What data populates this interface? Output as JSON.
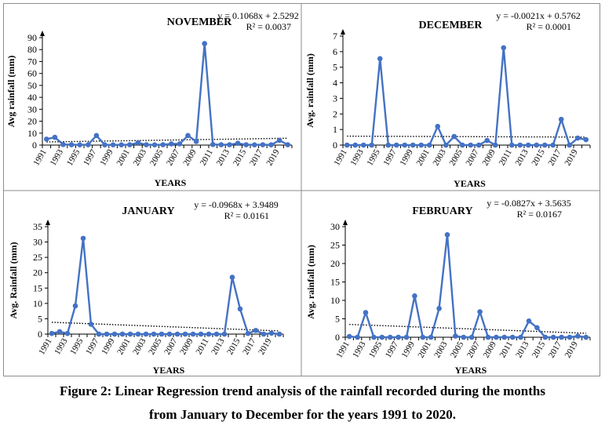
{
  "caption": {
    "line1": "Figure 2: Linear Regression trend analysis of the rainfall recorded during the months",
    "line2": "from January to December for the years 1991 to 2020."
  },
  "colors": {
    "series": "#4472C4",
    "trend": "#000000",
    "border": "#8c8c8c"
  },
  "chart_data": [
    {
      "type": "line",
      "title": "NOVEMBER",
      "equation": "y = 0.1068x + 2.5292",
      "r2": "R² = 0.0037",
      "xlabel": "YEARS",
      "ylabel": "Avg rainfall (mm)",
      "ylim": [
        0,
        90
      ],
      "yticks": [
        0,
        10,
        20,
        30,
        40,
        50,
        60,
        70,
        80,
        90
      ],
      "x": [
        1991,
        1992,
        1993,
        1994,
        1995,
        1996,
        1997,
        1998,
        1999,
        2000,
        2001,
        2002,
        2003,
        2004,
        2005,
        2006,
        2007,
        2008,
        2009,
        2010,
        2011,
        2012,
        2013,
        2014,
        2015,
        2016,
        2017,
        2018,
        2019,
        2020
      ],
      "xticks": [
        "1991",
        "1993",
        "1995",
        "1997",
        "1999",
        "2001",
        "2003",
        "2005",
        "2007",
        "2009",
        "2011",
        "2013",
        "2015",
        "2017",
        "2019"
      ],
      "values": [
        5.0,
        6.5,
        0.5,
        0.3,
        0.2,
        0.3,
        8.0,
        0.2,
        0.2,
        0.2,
        0.3,
        2.0,
        0.3,
        0.2,
        0.3,
        1.0,
        1.0,
        8.0,
        3.0,
        85.0,
        0.5,
        0.3,
        0.3,
        1.5,
        0.3,
        0.2,
        0.3,
        0.2,
        4.0,
        0.3
      ],
      "trend": {
        "slope": 0.1068,
        "intercept": 2.5292
      },
      "grid": false
    },
    {
      "type": "line",
      "title": "DECEMBER",
      "equation": "y = -0.0021x + 0.5762",
      "r2": "R² = 0.0001",
      "xlabel": "YEARS",
      "ylabel": "Avg. rainfall (mm)",
      "ylim": [
        0,
        7
      ],
      "yticks": [
        0,
        1,
        2,
        3,
        4,
        5,
        6,
        7
      ],
      "x": [
        1991,
        1992,
        1993,
        1994,
        1995,
        1996,
        1997,
        1998,
        1999,
        2000,
        2001,
        2002,
        2003,
        2004,
        2005,
        2006,
        2007,
        2008,
        2009,
        2010,
        2011,
        2012,
        2013,
        2014,
        2015,
        2016,
        2017,
        2018,
        2019,
        2020
      ],
      "xticks": [
        "1991",
        "1993",
        "1995",
        "1997",
        "1999",
        "2001",
        "2003",
        "2005",
        "2007",
        "2009",
        "2011",
        "2013",
        "2015",
        "2017",
        "2019"
      ],
      "values": [
        0,
        0,
        0,
        0,
        5.55,
        0,
        0,
        0,
        0,
        0,
        0,
        1.2,
        0,
        0.55,
        0,
        0,
        0,
        0.3,
        0,
        6.25,
        0,
        0,
        0,
        0,
        0,
        0,
        1.65,
        0,
        0.45,
        0.35
      ],
      "trend": {
        "slope": -0.0021,
        "intercept": 0.5762
      },
      "grid": false
    },
    {
      "type": "line",
      "title": "JANUARY",
      "equation": "y = -0.0968x + 3.9489",
      "r2": "R² = 0.0161",
      "xlabel": "YEARS",
      "ylabel": "Avg. Rainfall (mm)",
      "ylim": [
        0,
        35
      ],
      "yticks": [
        0,
        5,
        10,
        15,
        20,
        25,
        30,
        35
      ],
      "x": [
        1991,
        1992,
        1993,
        1994,
        1995,
        1996,
        1997,
        1998,
        1999,
        2000,
        2001,
        2002,
        2003,
        2004,
        2005,
        2006,
        2007,
        2008,
        2009,
        2010,
        2011,
        2012,
        2013,
        2014,
        2015,
        2016,
        2017,
        2018,
        2019,
        2020
      ],
      "xticks": [
        "1991",
        "1993",
        "1995",
        "1997",
        "1999",
        "2001",
        "2003",
        "2005",
        "2007",
        "2009",
        "2011",
        "2013",
        "2015",
        "2017",
        "2019"
      ],
      "values": [
        0.2,
        0.8,
        0.2,
        9.2,
        31.2,
        3.2,
        0,
        0,
        0,
        0,
        0,
        0,
        0,
        0,
        0,
        0,
        0,
        0,
        0,
        0,
        0,
        0,
        0,
        18.5,
        8.2,
        0.2,
        1.2,
        0,
        0.3,
        0
      ],
      "trend": {
        "slope": -0.0968,
        "intercept": 3.9489
      },
      "grid": false
    },
    {
      "type": "line",
      "title": "FEBRUARY",
      "equation": "y = -0.0827x + 3.5635",
      "r2": "R² = 0.0167",
      "xlabel": "YEARS",
      "ylabel": "Avg. rainfall (mm)",
      "ylim": [
        0,
        30
      ],
      "yticks": [
        0,
        5,
        10,
        15,
        20,
        25,
        30
      ],
      "x": [
        1991,
        1992,
        1993,
        1994,
        1995,
        1996,
        1997,
        1998,
        1999,
        2000,
        2001,
        2002,
        2003,
        2004,
        2005,
        2006,
        2007,
        2008,
        2009,
        2010,
        2011,
        2012,
        2013,
        2014,
        2015,
        2016,
        2017,
        2018,
        2019,
        2020
      ],
      "xticks": [
        "1991",
        "1993",
        "1995",
        "1997",
        "1999",
        "2001",
        "2003",
        "2005",
        "2007",
        "2009",
        "2011",
        "2013",
        "2015",
        "2017",
        "2019"
      ],
      "values": [
        0.2,
        0,
        6.7,
        0,
        0,
        0,
        0,
        0,
        11.2,
        0,
        0,
        7.8,
        27.8,
        0.3,
        0,
        0,
        6.9,
        0,
        0,
        0,
        0,
        0,
        4.4,
        2.6,
        0,
        0,
        0,
        0,
        0.3,
        0
      ],
      "trend": {
        "slope": -0.0827,
        "intercept": 3.5635
      },
      "grid": false
    }
  ]
}
